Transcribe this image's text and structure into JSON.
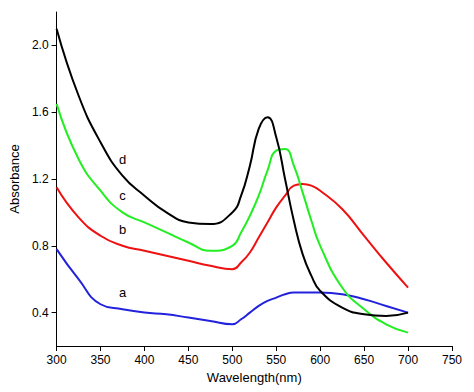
{
  "chart_data": {
    "type": "line",
    "x_label": "Wavelength(nm)",
    "y_label": "Absorbance",
    "x": [
      300,
      325,
      350,
      375,
      400,
      425,
      450,
      475,
      500,
      510,
      520,
      530,
      540,
      550,
      560,
      570,
      580,
      590,
      600,
      625,
      650,
      675,
      700
    ],
    "series": [
      {
        "name": "a",
        "color": "#2222dd",
        "values": [
          0.78,
          0.6,
          0.45,
          0.42,
          0.4,
          0.39,
          0.37,
          0.35,
          0.33,
          0.36,
          0.4,
          0.44,
          0.47,
          0.49,
          0.51,
          0.52,
          0.52,
          0.52,
          0.52,
          0.51,
          0.48,
          0.44,
          0.4
        ]
      },
      {
        "name": "b",
        "color": "#ee1111",
        "values": [
          1.15,
          0.97,
          0.86,
          0.8,
          0.77,
          0.74,
          0.71,
          0.68,
          0.66,
          0.7,
          0.76,
          0.85,
          0.94,
          1.03,
          1.1,
          1.16,
          1.17,
          1.16,
          1.13,
          1.02,
          0.86,
          0.7,
          0.55
        ]
      },
      {
        "name": "c",
        "color": "#22ee22",
        "values": [
          1.65,
          1.32,
          1.13,
          1.0,
          0.94,
          0.88,
          0.82,
          0.77,
          0.8,
          0.88,
          0.98,
          1.1,
          1.25,
          1.37,
          1.38,
          1.28,
          1.12,
          0.95,
          0.8,
          0.55,
          0.42,
          0.33,
          0.28
        ]
      },
      {
        "name": "d",
        "color": "#000000",
        "values": [
          2.1,
          1.7,
          1.42,
          1.22,
          1.1,
          1.0,
          0.94,
          0.93,
          1.0,
          1.1,
          1.28,
          1.5,
          1.57,
          1.45,
          1.2,
          0.95,
          0.75,
          0.62,
          0.53,
          0.43,
          0.39,
          0.38,
          0.4
        ]
      }
    ],
    "xlim": [
      300,
      750
    ],
    "xticks": [
      300,
      350,
      400,
      450,
      500,
      550,
      600,
      650,
      700,
      750
    ],
    "ylim": [
      0.2,
      2.2
    ],
    "yticks": [
      0.4,
      0.8,
      1.2,
      1.6,
      {
        "value": 2,
        "label": "2.0"
      }
    ],
    "grid": false
  }
}
